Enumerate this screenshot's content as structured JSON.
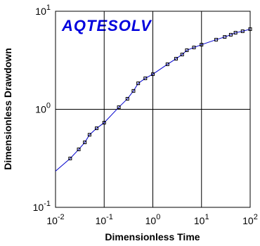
{
  "chart_data": {
    "type": "line",
    "logo": "AQTESOLV",
    "x_label": "Dimensionless Time",
    "y_label": "Dimensionless Drawdown",
    "log_x": true,
    "log_y": true,
    "grid": true,
    "xlim": [
      0.01,
      100
    ],
    "ylim": [
      0.1,
      10
    ],
    "xticks": [
      {
        "value": 0.01,
        "label": "10",
        "exponent": "-2"
      },
      {
        "value": 0.1,
        "label": "10",
        "exponent": "-1"
      },
      {
        "value": 1,
        "label": "10",
        "exponent": "0"
      },
      {
        "value": 10,
        "label": "10",
        "exponent": "1"
      },
      {
        "value": 100,
        "label": "10",
        "exponent": "2"
      }
    ],
    "yticks": [
      {
        "value": 0.1,
        "label": "10",
        "exponent": "-1"
      },
      {
        "value": 1,
        "label": "10",
        "exponent": "0"
      },
      {
        "value": 10,
        "label": "10",
        "exponent": "1"
      }
    ],
    "series": [
      {
        "style": "line",
        "color": "#0000cc",
        "x": [
          0.01,
          0.02,
          0.03,
          0.04,
          0.05,
          0.07,
          0.1,
          0.2,
          0.3,
          0.4,
          0.5,
          0.7,
          1,
          2,
          3,
          4,
          5,
          7,
          10,
          20,
          30,
          40,
          50,
          70,
          100
        ],
        "values": [
          0.234,
          0.315,
          0.39,
          0.46,
          0.55,
          0.64,
          0.73,
          1.05,
          1.28,
          1.54,
          1.84,
          2.07,
          2.28,
          2.88,
          3.28,
          3.62,
          4.0,
          4.27,
          4.56,
          5.13,
          5.47,
          5.76,
          6.04,
          6.25,
          6.57
        ]
      },
      {
        "style": "marker",
        "color": "#000000",
        "x": [
          0.02,
          0.03,
          0.04,
          0.05,
          0.07,
          0.1,
          0.2,
          0.3,
          0.4,
          0.5,
          0.7,
          1,
          2,
          3,
          4,
          5,
          7,
          10,
          20,
          30,
          40,
          50,
          70,
          100
        ],
        "values": [
          0.315,
          0.39,
          0.46,
          0.55,
          0.64,
          0.73,
          1.05,
          1.28,
          1.54,
          1.84,
          2.07,
          2.28,
          2.88,
          3.28,
          3.62,
          4.0,
          4.27,
          4.56,
          5.13,
          5.47,
          5.76,
          6.04,
          6.25,
          6.57
        ]
      }
    ]
  }
}
